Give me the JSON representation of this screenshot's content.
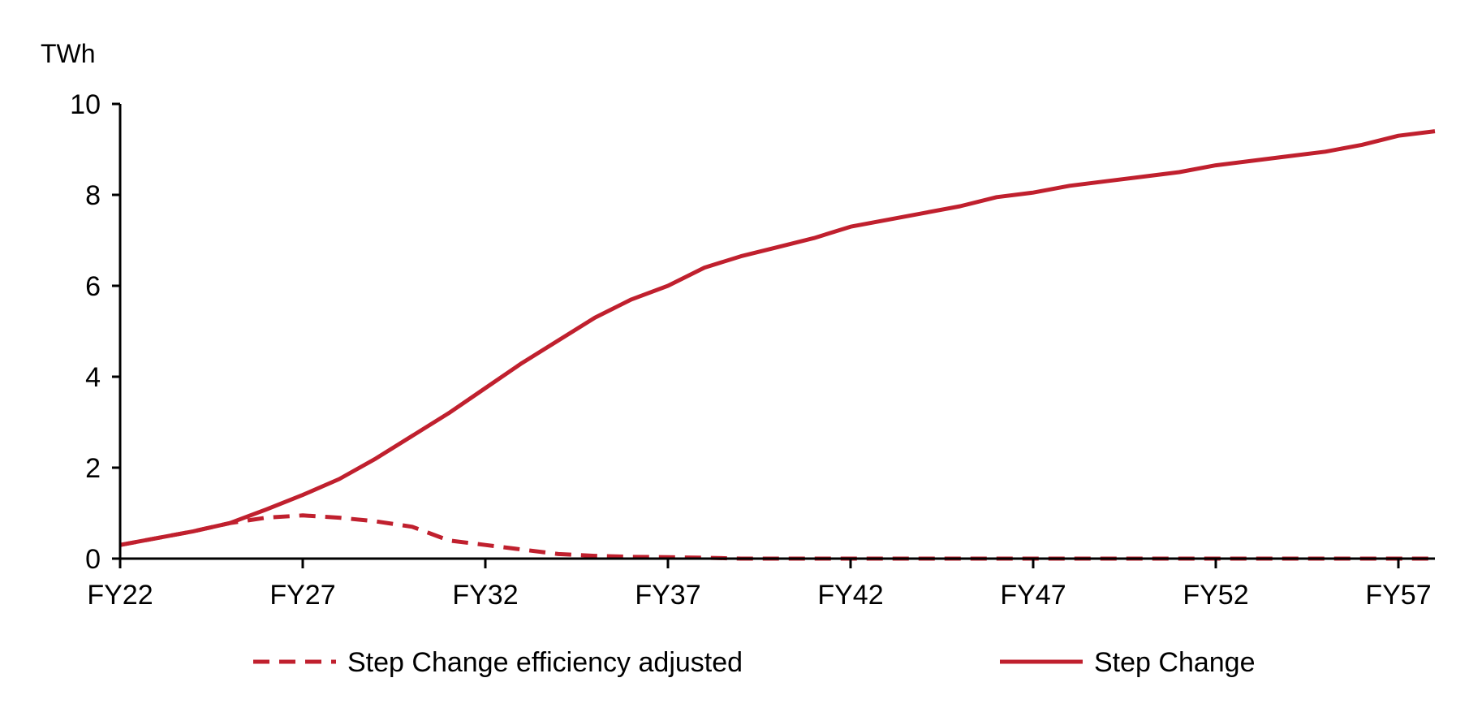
{
  "chart_data": {
    "type": "line",
    "ylabel": "TWh",
    "ylim": [
      0,
      10
    ],
    "yticks": [
      "0",
      "2",
      "4",
      "6",
      "8",
      "10"
    ],
    "x": [
      "FY22",
      "FY23",
      "FY24",
      "FY25",
      "FY26",
      "FY27",
      "FY28",
      "FY29",
      "FY30",
      "FY31",
      "FY32",
      "FY33",
      "FY34",
      "FY35",
      "FY36",
      "FY37",
      "FY38",
      "FY39",
      "FY40",
      "FY41",
      "FY42",
      "FY43",
      "FY44",
      "FY45",
      "FY46",
      "FY47",
      "FY48",
      "FY49",
      "FY50",
      "FY51",
      "FY52",
      "FY53",
      "FY54",
      "FY55",
      "FY56",
      "FY57",
      "FY58"
    ],
    "xtick_labels": [
      "FY22",
      "FY27",
      "FY32",
      "FY37",
      "FY42",
      "FY47",
      "FY52",
      "FY57"
    ],
    "series": [
      {
        "name": "Step Change efficiency adjusted",
        "style": "dashed",
        "color": "#c0202e",
        "values": [
          0.3,
          0.45,
          0.6,
          0.78,
          0.9,
          0.95,
          0.9,
          0.82,
          0.7,
          0.4,
          0.3,
          0.2,
          0.1,
          0.06,
          0.04,
          0.03,
          0.02,
          0,
          0,
          0,
          0,
          0,
          0,
          0,
          0,
          0,
          0,
          0,
          0,
          0,
          0,
          0,
          0,
          0,
          0,
          0,
          0
        ]
      },
      {
        "name": "Step Change",
        "style": "solid",
        "color": "#c0202e",
        "values": [
          0.3,
          0.45,
          0.6,
          0.78,
          1.08,
          1.4,
          1.75,
          2.2,
          2.7,
          3.2,
          3.75,
          4.3,
          4.8,
          5.3,
          5.7,
          6.0,
          6.4,
          6.65,
          6.85,
          7.05,
          7.3,
          7.45,
          7.6,
          7.75,
          7.95,
          8.05,
          8.2,
          8.3,
          8.4,
          8.5,
          8.65,
          8.75,
          8.85,
          8.95,
          9.1,
          9.3,
          9.4
        ]
      }
    ],
    "legend": "bottom"
  }
}
